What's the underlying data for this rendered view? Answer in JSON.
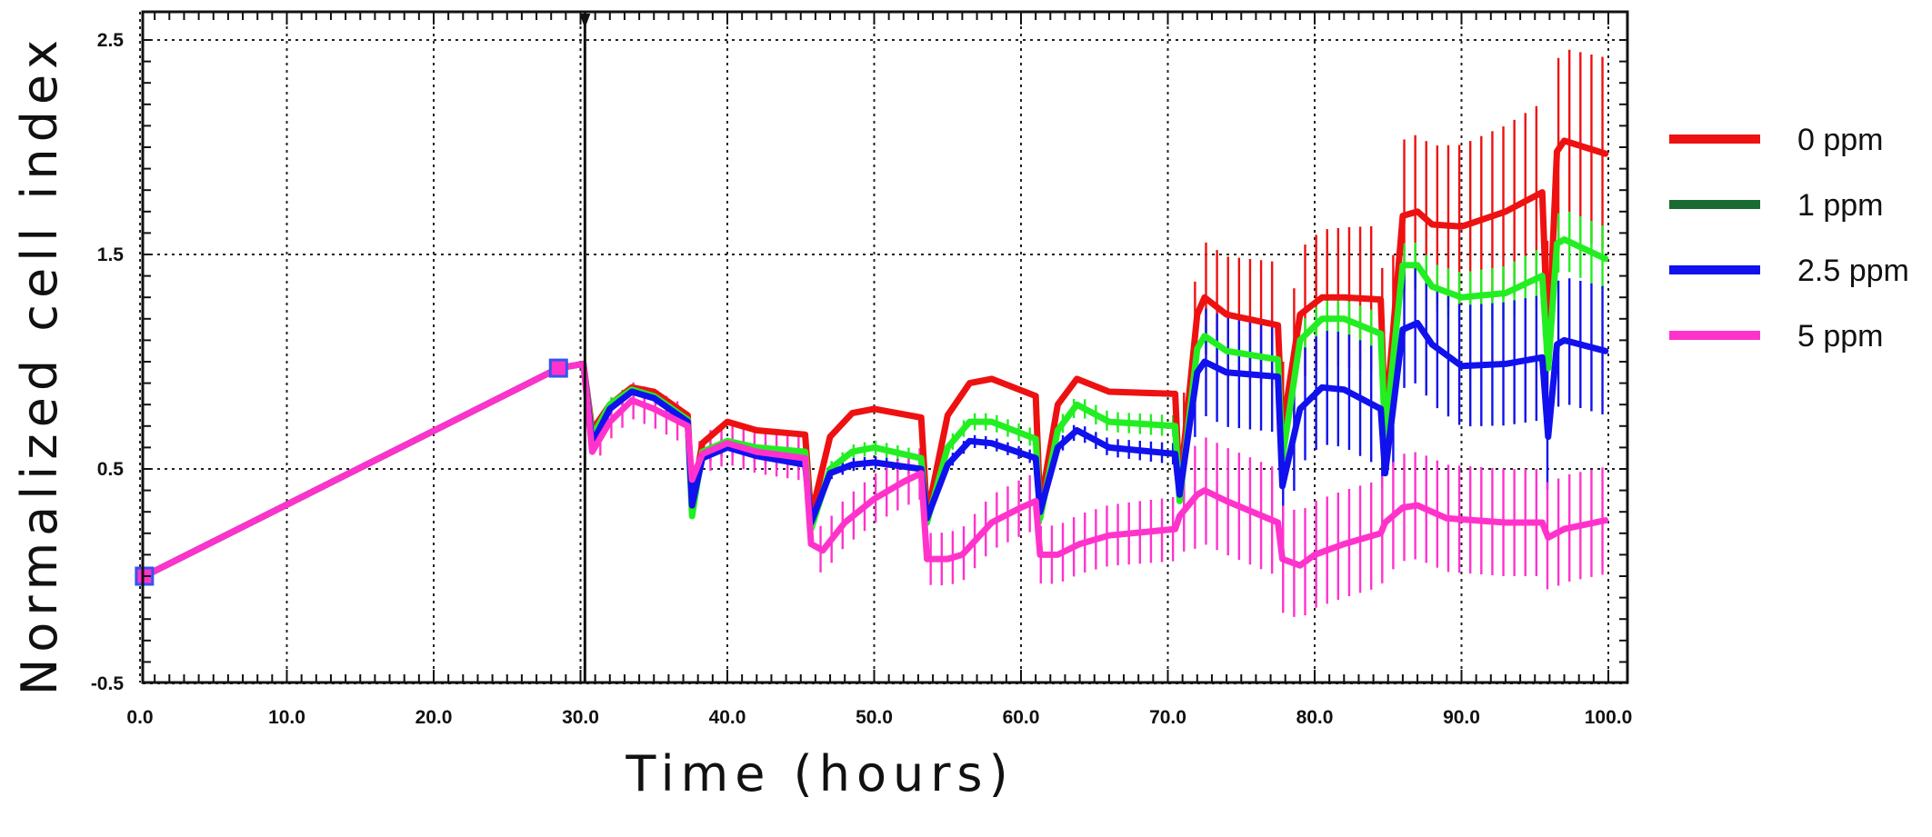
{
  "chart_data": {
    "type": "line",
    "xlabel": "Time (hours)",
    "ylabel": "Normalized cell index",
    "xlim": [
      0,
      100
    ],
    "ylim": [
      -0.5,
      2.5
    ],
    "x_ticks": [
      "0.0",
      "10.0",
      "20.0",
      "30.0",
      "40.0",
      "50.0",
      "60.0",
      "70.0",
      "80.0",
      "90.0",
      "100.0"
    ],
    "y_ticks": [
      "2.5",
      "1.5",
      "0.5",
      "-0.5"
    ],
    "grid": true,
    "legend_position": "right",
    "series": [
      {
        "name": "0 ppm",
        "color": "#ee1111",
        "points": [
          [
            0.3,
            0
          ],
          [
            28.5,
            0.97
          ],
          [
            30.2,
            0.99
          ],
          [
            30.8,
            0.68
          ],
          [
            32,
            0.8
          ],
          [
            33.5,
            0.88
          ],
          [
            35,
            0.86
          ],
          [
            37.3,
            0.75
          ],
          [
            37.6,
            0.35
          ],
          [
            38.3,
            0.62
          ],
          [
            40,
            0.72
          ],
          [
            42,
            0.68
          ],
          [
            45.3,
            0.66
          ],
          [
            45.7,
            0.28
          ],
          [
            47,
            0.65
          ],
          [
            48.5,
            0.76
          ],
          [
            50,
            0.78
          ],
          [
            53.2,
            0.74
          ],
          [
            53.6,
            0.28
          ],
          [
            55,
            0.75
          ],
          [
            56.5,
            0.9
          ],
          [
            58,
            0.92
          ],
          [
            61,
            0.84
          ],
          [
            61.3,
            0.32
          ],
          [
            62.5,
            0.8
          ],
          [
            63.8,
            0.92
          ],
          [
            66,
            0.86
          ],
          [
            70.5,
            0.85
          ],
          [
            70.8,
            0.4
          ],
          [
            72,
            1.22
          ],
          [
            72.5,
            1.3
          ],
          [
            74,
            1.22
          ],
          [
            77.5,
            1.17
          ],
          [
            77.8,
            0.68
          ],
          [
            79,
            1.22
          ],
          [
            80.5,
            1.3
          ],
          [
            82,
            1.3
          ],
          [
            84.5,
            1.29
          ],
          [
            84.8,
            0.7
          ],
          [
            86,
            1.68
          ],
          [
            87,
            1.7
          ],
          [
            88,
            1.64
          ],
          [
            90,
            1.63
          ],
          [
            93,
            1.7
          ],
          [
            95.5,
            1.79
          ],
          [
            95.9,
            1.05
          ],
          [
            96.5,
            1.98
          ],
          [
            97,
            2.03
          ],
          [
            99.8,
            1.97
          ]
        ],
        "errors": [
          [
            70.5,
            0
          ],
          [
            71,
            0.25
          ],
          [
            100,
            0.45
          ]
        ]
      },
      {
        "name": "1 ppm",
        "color": "#1a6b33",
        "line_color": "#22ee22",
        "points": [
          [
            0.3,
            0
          ],
          [
            28.5,
            0.97
          ],
          [
            30.2,
            0.99
          ],
          [
            30.8,
            0.65
          ],
          [
            32,
            0.8
          ],
          [
            33.5,
            0.87
          ],
          [
            35,
            0.84
          ],
          [
            37.3,
            0.73
          ],
          [
            37.6,
            0.28
          ],
          [
            38.3,
            0.58
          ],
          [
            40,
            0.63
          ],
          [
            42,
            0.6
          ],
          [
            45.3,
            0.58
          ],
          [
            45.7,
            0.22
          ],
          [
            47,
            0.5
          ],
          [
            48.5,
            0.58
          ],
          [
            50,
            0.6
          ],
          [
            53.2,
            0.55
          ],
          [
            53.6,
            0.25
          ],
          [
            55,
            0.6
          ],
          [
            56.5,
            0.72
          ],
          [
            58,
            0.72
          ],
          [
            61,
            0.64
          ],
          [
            61.3,
            0.27
          ],
          [
            62.5,
            0.68
          ],
          [
            63.8,
            0.8
          ],
          [
            66,
            0.72
          ],
          [
            70.5,
            0.7
          ],
          [
            70.8,
            0.35
          ],
          [
            72,
            1.06
          ],
          [
            72.5,
            1.12
          ],
          [
            74,
            1.05
          ],
          [
            77.5,
            1.01
          ],
          [
            77.8,
            0.55
          ],
          [
            79,
            1.1
          ],
          [
            80.5,
            1.2
          ],
          [
            82,
            1.2
          ],
          [
            84.5,
            1.13
          ],
          [
            84.8,
            0.65
          ],
          [
            86,
            1.45
          ],
          [
            87,
            1.45
          ],
          [
            88,
            1.35
          ],
          [
            90,
            1.3
          ],
          [
            93,
            1.32
          ],
          [
            95.5,
            1.4
          ],
          [
            95.9,
            0.97
          ],
          [
            96.5,
            1.55
          ],
          [
            97,
            1.57
          ],
          [
            99.8,
            1.48
          ]
        ],
        "errors": [
          [
            45,
            0.03
          ],
          [
            70.5,
            0.05
          ],
          [
            100,
            0.15
          ]
        ]
      },
      {
        "name": "2.5 ppm",
        "color": "#1111ee",
        "points": [
          [
            0.3,
            0
          ],
          [
            28.5,
            0.97
          ],
          [
            30.2,
            0.99
          ],
          [
            30.8,
            0.62
          ],
          [
            32,
            0.78
          ],
          [
            33.5,
            0.86
          ],
          [
            35,
            0.83
          ],
          [
            37.3,
            0.72
          ],
          [
            37.6,
            0.33
          ],
          [
            38.3,
            0.55
          ],
          [
            40,
            0.6
          ],
          [
            42,
            0.56
          ],
          [
            45.3,
            0.52
          ],
          [
            45.7,
            0.25
          ],
          [
            47,
            0.48
          ],
          [
            48.5,
            0.52
          ],
          [
            50,
            0.53
          ],
          [
            53.2,
            0.5
          ],
          [
            53.6,
            0.27
          ],
          [
            55,
            0.52
          ],
          [
            56.5,
            0.63
          ],
          [
            58,
            0.62
          ],
          [
            61,
            0.55
          ],
          [
            61.3,
            0.3
          ],
          [
            62.5,
            0.6
          ],
          [
            63.8,
            0.68
          ],
          [
            66,
            0.6
          ],
          [
            70.5,
            0.57
          ],
          [
            70.8,
            0.38
          ],
          [
            72,
            0.95
          ],
          [
            72.5,
            1.0
          ],
          [
            74,
            0.95
          ],
          [
            77.5,
            0.93
          ],
          [
            77.8,
            0.42
          ],
          [
            79,
            0.78
          ],
          [
            80.5,
            0.88
          ],
          [
            82,
            0.87
          ],
          [
            84.5,
            0.78
          ],
          [
            84.8,
            0.48
          ],
          [
            86,
            1.15
          ],
          [
            87,
            1.18
          ],
          [
            88,
            1.08
          ],
          [
            90,
            0.98
          ],
          [
            93,
            0.99
          ],
          [
            95.5,
            1.02
          ],
          [
            95.9,
            0.65
          ],
          [
            96.5,
            1.08
          ],
          [
            97,
            1.1
          ],
          [
            99.8,
            1.05
          ]
        ],
        "errors": [
          [
            60,
            0.03
          ],
          [
            70.5,
            0.05
          ],
          [
            72,
            0.25
          ],
          [
            100,
            0.3
          ]
        ]
      },
      {
        "name": "5 ppm",
        "color": "#ff33cc",
        "points": [
          [
            0.3,
            0
          ],
          [
            28.5,
            0.97
          ],
          [
            30.2,
            0.99
          ],
          [
            30.8,
            0.58
          ],
          [
            32,
            0.72
          ],
          [
            33.5,
            0.82
          ],
          [
            35,
            0.78
          ],
          [
            37.3,
            0.7
          ],
          [
            37.6,
            0.45
          ],
          [
            38.3,
            0.57
          ],
          [
            40,
            0.62
          ],
          [
            42,
            0.58
          ],
          [
            45.3,
            0.55
          ],
          [
            45.7,
            0.15
          ],
          [
            46.5,
            0.12
          ],
          [
            48,
            0.25
          ],
          [
            50,
            0.36
          ],
          [
            52,
            0.44
          ],
          [
            53.2,
            0.48
          ],
          [
            53.6,
            0.08
          ],
          [
            55,
            0.08
          ],
          [
            56,
            0.1
          ],
          [
            58,
            0.25
          ],
          [
            60,
            0.32
          ],
          [
            61,
            0.35
          ],
          [
            61.3,
            0.1
          ],
          [
            62.5,
            0.1
          ],
          [
            64,
            0.15
          ],
          [
            66,
            0.19
          ],
          [
            70.5,
            0.22
          ],
          [
            70.8,
            0.28
          ],
          [
            72,
            0.38
          ],
          [
            72.5,
            0.4
          ],
          [
            74,
            0.35
          ],
          [
            77.5,
            0.25
          ],
          [
            77.8,
            0.08
          ],
          [
            79,
            0.05
          ],
          [
            80,
            0.1
          ],
          [
            82,
            0.15
          ],
          [
            84.5,
            0.2
          ],
          [
            84.8,
            0.25
          ],
          [
            86,
            0.32
          ],
          [
            87,
            0.33
          ],
          [
            89,
            0.27
          ],
          [
            93,
            0.25
          ],
          [
            95.5,
            0.25
          ],
          [
            95.9,
            0.18
          ],
          [
            97,
            0.22
          ],
          [
            99.8,
            0.26
          ]
        ],
        "errors": [
          [
            30,
            0.08
          ],
          [
            70.5,
            0.15
          ],
          [
            72,
            0.25
          ],
          [
            100,
            0.25
          ]
        ]
      }
    ],
    "annotation": {
      "type": "vertical-line",
      "x": 30.3
    }
  }
}
